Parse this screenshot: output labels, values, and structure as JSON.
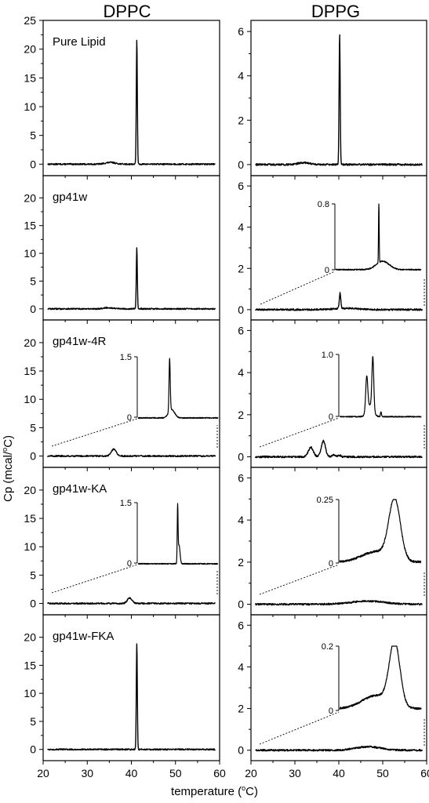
{
  "figure": {
    "column_titles": [
      "DPPC",
      "DPPG"
    ],
    "ylabel_prefix": "Cp (mcal/",
    "ylabel_deg": "o",
    "ylabel_suffix": "C)",
    "xlabel_prefix": "temperature (",
    "xlabel_deg": "o",
    "xlabel_suffix": "C)"
  },
  "chart_data": [
    {
      "type": "line",
      "id": "dppc-pure",
      "column": "DPPC",
      "label": "Pure Lipid",
      "xlim": [
        20,
        60
      ],
      "ylim": [
        -2,
        25
      ],
      "yticks": [
        0,
        5,
        10,
        15,
        20,
        25
      ],
      "xticks": [
        20,
        30,
        40,
        50,
        60
      ],
      "baseline": 0,
      "noise": 0.12,
      "features": [
        [
          35,
          0.3,
          1.2
        ],
        [
          41.3,
          21.8,
          0.12
        ]
      ]
    },
    {
      "type": "line",
      "id": "dppc-gp41w",
      "column": "DPPC",
      "label": "gp41w",
      "xlim": [
        20,
        60
      ],
      "ylim": [
        -2,
        24
      ],
      "yticks": [
        0,
        5,
        10,
        15,
        20
      ],
      "xticks": [
        20,
        30,
        40,
        50,
        60
      ],
      "baseline": 0,
      "noise": 0.12,
      "features": [
        [
          34.5,
          0.2,
          1.2
        ],
        [
          41.3,
          11.0,
          0.12
        ]
      ]
    },
    {
      "type": "line",
      "id": "dppc-4r",
      "column": "DPPC",
      "label": "gp41w-4R",
      "xlim": [
        20,
        60
      ],
      "ylim": [
        -2,
        24
      ],
      "yticks": [
        0,
        5,
        10,
        15,
        20
      ],
      "xticks": [
        20,
        30,
        40,
        50,
        60
      ],
      "baseline": 0,
      "noise": 0.12,
      "features": [
        [
          35.8,
          1.2,
          0.6
        ]
      ],
      "inset": {
        "xlim": [
          20,
          60
        ],
        "ylim": [
          0,
          1.5
        ],
        "yticks": [
          0,
          1.5
        ],
        "baseline": 0.02,
        "noise": 0.012,
        "features": [
          [
            35.8,
            1.28,
            0.3
          ],
          [
            36.8,
            0.2,
            1.5
          ]
        ]
      }
    },
    {
      "type": "line",
      "id": "dppc-ka",
      "column": "DPPC",
      "label": "gp41w-KA",
      "xlim": [
        20,
        60
      ],
      "ylim": [
        -2,
        24
      ],
      "yticks": [
        0,
        5,
        10,
        15,
        20
      ],
      "xticks": [
        20,
        30,
        40,
        50,
        60
      ],
      "baseline": 0,
      "noise": 0.12,
      "features": [
        [
          39.6,
          1.0,
          0.55
        ]
      ],
      "inset": {
        "xlim": [
          20,
          60
        ],
        "ylim": [
          0,
          1.5
        ],
        "yticks": [
          0,
          1.5
        ],
        "baseline": 0.02,
        "noise": 0.012,
        "features": [
          [
            39.8,
            1.3,
            0.2
          ],
          [
            40.5,
            0.45,
            0.5
          ]
        ]
      }
    },
    {
      "type": "line",
      "id": "dppc-fka",
      "column": "DPPC",
      "label": "gp41w-FKA",
      "xlim": [
        20,
        60
      ],
      "ylim": [
        -2,
        24
      ],
      "yticks": [
        0,
        5,
        10,
        15,
        20
      ],
      "xticks": [
        20,
        30,
        40,
        50,
        60
      ],
      "baseline": 0,
      "noise": 0.12,
      "features": [
        [
          41.3,
          19.0,
          0.12
        ]
      ]
    },
    {
      "type": "line",
      "id": "dppg-pure",
      "column": "DPPG",
      "label": "",
      "xlim": [
        20,
        60
      ],
      "ylim": [
        -0.5,
        6.5
      ],
      "yticks": [
        0,
        2,
        4,
        6
      ],
      "xticks": [
        20,
        30,
        40,
        50,
        60
      ],
      "baseline": 0,
      "noise": 0.04,
      "features": [
        [
          31.5,
          0.08,
          1.5
        ],
        [
          40.2,
          5.9,
          0.13
        ]
      ]
    },
    {
      "type": "line",
      "id": "dppg-gp41w",
      "column": "DPPG",
      "label": "",
      "xlim": [
        20,
        60
      ],
      "ylim": [
        -0.5,
        6.5
      ],
      "yticks": [
        0,
        2,
        4,
        6
      ],
      "xticks": [
        20,
        30,
        40,
        50,
        60
      ],
      "baseline": 0,
      "noise": 0.04,
      "features": [
        [
          40.3,
          0.75,
          0.18
        ],
        [
          42,
          0.06,
          3
        ]
      ],
      "inset": {
        "xlim": [
          20,
          60
        ],
        "ylim": [
          0,
          0.8
        ],
        "yticks": [
          0,
          0.8
        ],
        "baseline": 0.02,
        "noise": 0.007,
        "features": [
          [
            40.2,
            0.74,
            0.15
          ],
          [
            42,
            0.1,
            3
          ]
        ]
      }
    },
    {
      "type": "line",
      "id": "dppg-4r",
      "column": "DPPG",
      "label": "",
      "xlim": [
        20,
        60
      ],
      "ylim": [
        -0.5,
        6.5
      ],
      "yticks": [
        0,
        2,
        4,
        6
      ],
      "xticks": [
        20,
        30,
        40,
        50,
        60
      ],
      "baseline": 0,
      "noise": 0.04,
      "features": [
        [
          33.3,
          0.45,
          0.6
        ],
        [
          36.3,
          0.75,
          0.5
        ],
        [
          38.8,
          0.1,
          0.4
        ],
        [
          40.2,
          0.08,
          0.3
        ]
      ],
      "inset": {
        "xlim": [
          20,
          60
        ],
        "ylim": [
          0,
          1.0
        ],
        "yticks": [
          0,
          1.0
        ],
        "baseline": 0.02,
        "noise": 0.008,
        "features": [
          [
            33.3,
            0.55,
            0.5
          ],
          [
            36.3,
            0.82,
            0.45
          ],
          [
            35,
            0.18,
            1.5
          ],
          [
            40.3,
            0.08,
            0.25
          ]
        ]
      }
    },
    {
      "type": "line",
      "id": "dppg-ka",
      "column": "DPPG",
      "label": "",
      "xlim": [
        20,
        60
      ],
      "ylim": [
        -0.5,
        6.5
      ],
      "yticks": [
        0,
        2,
        4,
        6
      ],
      "xticks": [
        20,
        30,
        40,
        50,
        60
      ],
      "baseline": 0,
      "noise": 0.04,
      "features": [
        [
          47,
          0.15,
          4
        ]
      ],
      "inset": {
        "xlim": [
          20,
          60
        ],
        "ylim": [
          0,
          0.25
        ],
        "yticks": [
          0,
          0.25
        ],
        "baseline": 0.01,
        "noise": 0.004,
        "features": [
          [
            47,
            0.23,
            2.8
          ],
          [
            38,
            0.04,
            7
          ]
        ]
      }
    },
    {
      "type": "line",
      "id": "dppg-fka",
      "column": "DPPG",
      "label": "",
      "xlim": [
        20,
        60
      ],
      "ylim": [
        -0.5,
        6.5
      ],
      "yticks": [
        0,
        2,
        4,
        6
      ],
      "xticks": [
        20,
        30,
        40,
        50,
        60
      ],
      "baseline": 0,
      "noise": 0.04,
      "features": [
        [
          47,
          0.17,
          3
        ]
      ],
      "inset": {
        "xlim": [
          20,
          60
        ],
        "ylim": [
          0,
          0.2
        ],
        "yticks": [
          0,
          0.2
        ],
        "baseline": 0.01,
        "noise": 0.003,
        "features": [
          [
            47,
            0.19,
            2.6
          ],
          [
            38,
            0.04,
            7
          ]
        ]
      }
    }
  ]
}
